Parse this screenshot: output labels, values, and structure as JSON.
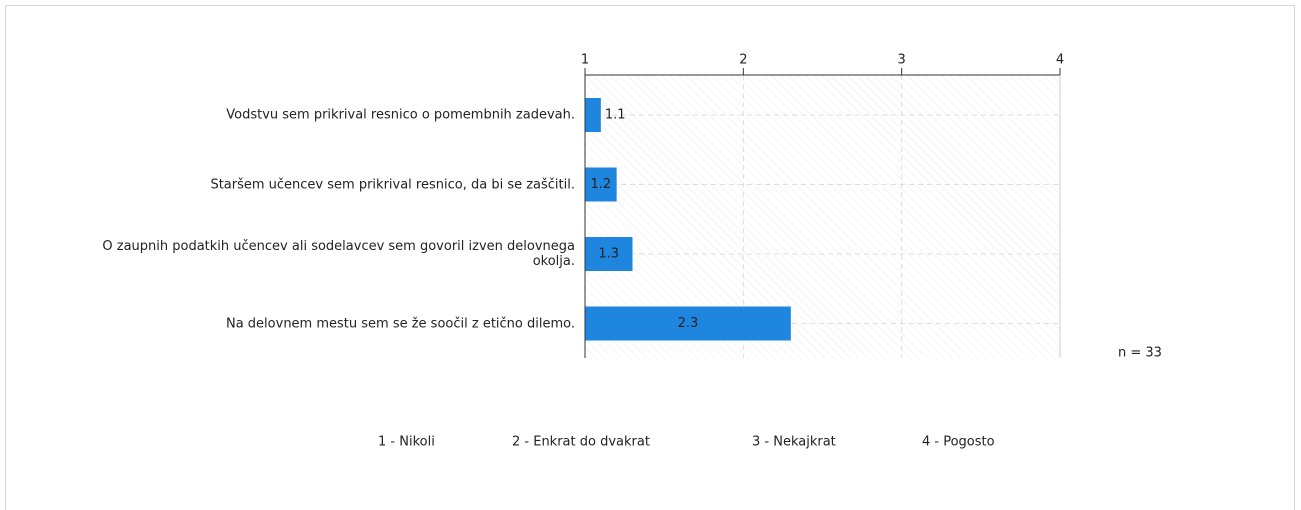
{
  "chart_data": {
    "type": "bar",
    "orientation": "horizontal",
    "categories": [
      "Vodstvu sem prikrival resnico o pomembnih zadevah.",
      "Staršem učencev sem prikrival resnico, da bi se zaščitil.",
      "O zaupnih podatkih učencev ali sodelavcev sem govoril izven delovnega okolja.",
      "Na delovnem mestu sem se že soočil z etično dilemo."
    ],
    "values": [
      1.1,
      1.2,
      1.3,
      2.3
    ],
    "color": "#1f86e0",
    "xlim": [
      1,
      4
    ],
    "xticks": [
      1,
      2,
      3,
      4
    ],
    "grid": true,
    "annotation": "n = 33",
    "scale_labels": [
      "1 - Nikoli",
      "2 - Enkrat do dvakrat",
      "3 - Nekajkrat",
      "4 - Pogosto"
    ]
  }
}
